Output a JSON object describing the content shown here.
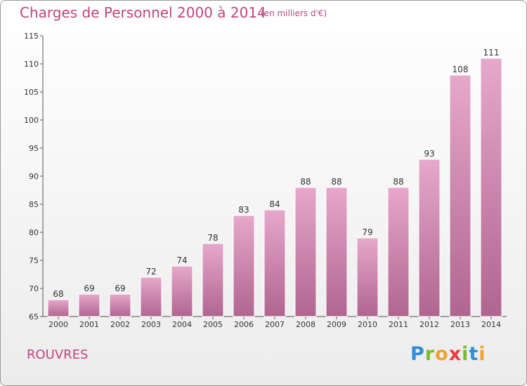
{
  "header": {
    "title": "Charges de Personnel 2000 à 2014",
    "subtitle": "(en milliers d'€)"
  },
  "footer": {
    "commune": "ROUVRES",
    "logo_text": "Proxiti"
  },
  "colors": {
    "title": "#c0457e",
    "bar_top": "#e6a8cb",
    "bar_bottom": "#b0658f",
    "bar_border": "#ffffff"
  },
  "chart_data": {
    "type": "bar",
    "title": "Charges de Personnel 2000 à 2014",
    "subtitle": "(en milliers d'€)",
    "xlabel": "",
    "ylabel": "",
    "categories": [
      "2000",
      "2001",
      "2002",
      "2003",
      "2004",
      "2005",
      "2006",
      "2007",
      "2008",
      "2009",
      "2010",
      "2011",
      "2012",
      "2013",
      "2014"
    ],
    "values": [
      68,
      69,
      69,
      72,
      74,
      78,
      83,
      84,
      88,
      88,
      79,
      88,
      93,
      108,
      111
    ],
    "ylim": [
      65,
      115
    ],
    "yticks": [
      65,
      70,
      75,
      80,
      85,
      90,
      95,
      100,
      105,
      110,
      115
    ],
    "grid": false,
    "legend": "none"
  }
}
